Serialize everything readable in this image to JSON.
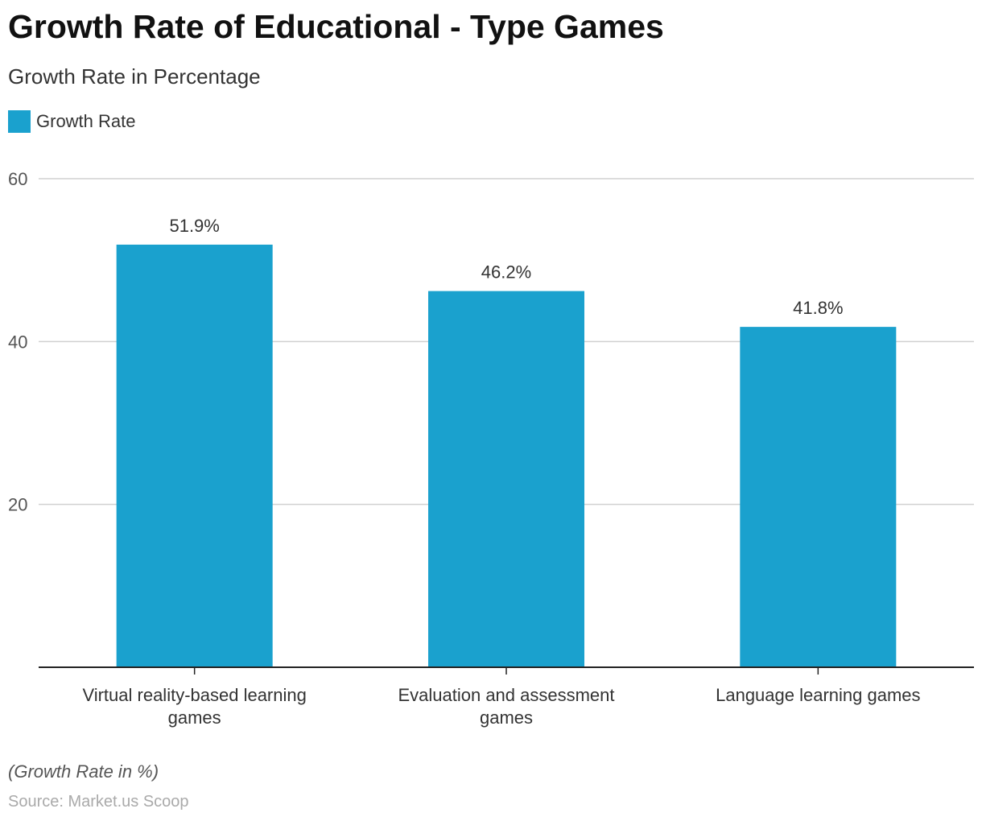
{
  "chart_data": {
    "type": "bar",
    "title": "Growth Rate of Educational - Type Games",
    "subtitle": "Growth Rate in Percentage",
    "legend": {
      "label": "Growth Rate",
      "placement": "top-left"
    },
    "categories": [
      "Virtual reality-based learning games",
      "Evaluation and assessment games",
      "Language learning games"
    ],
    "series": [
      {
        "name": "Growth Rate",
        "values": [
          51.9,
          46.2,
          41.8
        ],
        "labels": [
          "51.9%",
          "46.2%",
          "41.8%"
        ],
        "color": "#1aa1ce"
      }
    ],
    "yticks": [
      20,
      40,
      60
    ],
    "ylim": [
      0,
      60
    ],
    "grid": true,
    "xlabel": "",
    "ylabel": ""
  },
  "footer": {
    "note": "(Growth Rate in %)",
    "source": "Source: Market.us Scoop"
  }
}
